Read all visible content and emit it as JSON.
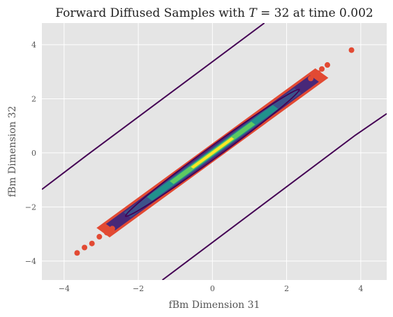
{
  "chart_data": {
    "type": "scatter",
    "title": "Forward Diffused Samples with T = 32 at time 0.002",
    "title_parts": {
      "lead": "Forward Diffused Samples with ",
      "var": "T",
      "tail": " = 32 at time 0.002"
    },
    "xlabel": "fBm Dimension 31",
    "ylabel": "fBm Dimension 32",
    "xlim": [
      -4.6,
      4.7
    ],
    "ylim": [
      -4.7,
      4.8
    ],
    "xticks": [
      -4,
      -2,
      0,
      2,
      4
    ],
    "yticks": [
      -4,
      -2,
      0,
      2,
      4
    ],
    "xtick_labels": [
      "−4",
      "−2",
      "0",
      "2",
      "4"
    ],
    "ytick_labels": [
      "−4",
      "−2",
      "0",
      "2",
      "4"
    ],
    "grid": true,
    "background": "#e5e5e5",
    "scatter_color": "#e24a33",
    "density_colormap": "viridis",
    "contour_color": "#440154",
    "band_slope": 1.0,
    "band_spread": 0.11,
    "samples_outliers": [
      {
        "x": -3.65,
        "y": -3.7
      },
      {
        "x": -3.45,
        "y": -3.5
      },
      {
        "x": -3.25,
        "y": -3.35
      },
      {
        "x": -3.05,
        "y": -3.1
      },
      {
        "x": -2.85,
        "y": -2.95
      },
      {
        "x": -2.7,
        "y": -2.8
      },
      {
        "x": 2.65,
        "y": 2.75
      },
      {
        "x": 2.85,
        "y": 2.95
      },
      {
        "x": 2.95,
        "y": 3.1
      },
      {
        "x": 3.1,
        "y": 3.25
      },
      {
        "x": 3.75,
        "y": 3.8
      }
    ],
    "contour_lines": [
      {
        "points": [
          {
            "x": -4.6,
            "y": -1.35
          },
          {
            "x": -3.4,
            "y": -0.1
          },
          {
            "x": 1.4,
            "y": 4.8
          }
        ]
      },
      {
        "points": [
          {
            "x": -1.35,
            "y": -4.7
          },
          {
            "x": 3.85,
            "y": 0.65
          },
          {
            "x": 4.7,
            "y": 1.45
          }
        ]
      }
    ],
    "inner_contour": {
      "center": {
        "x": 0.0,
        "y": 0.0
      },
      "half_length": 4.1,
      "half_width": 0.16
    }
  }
}
